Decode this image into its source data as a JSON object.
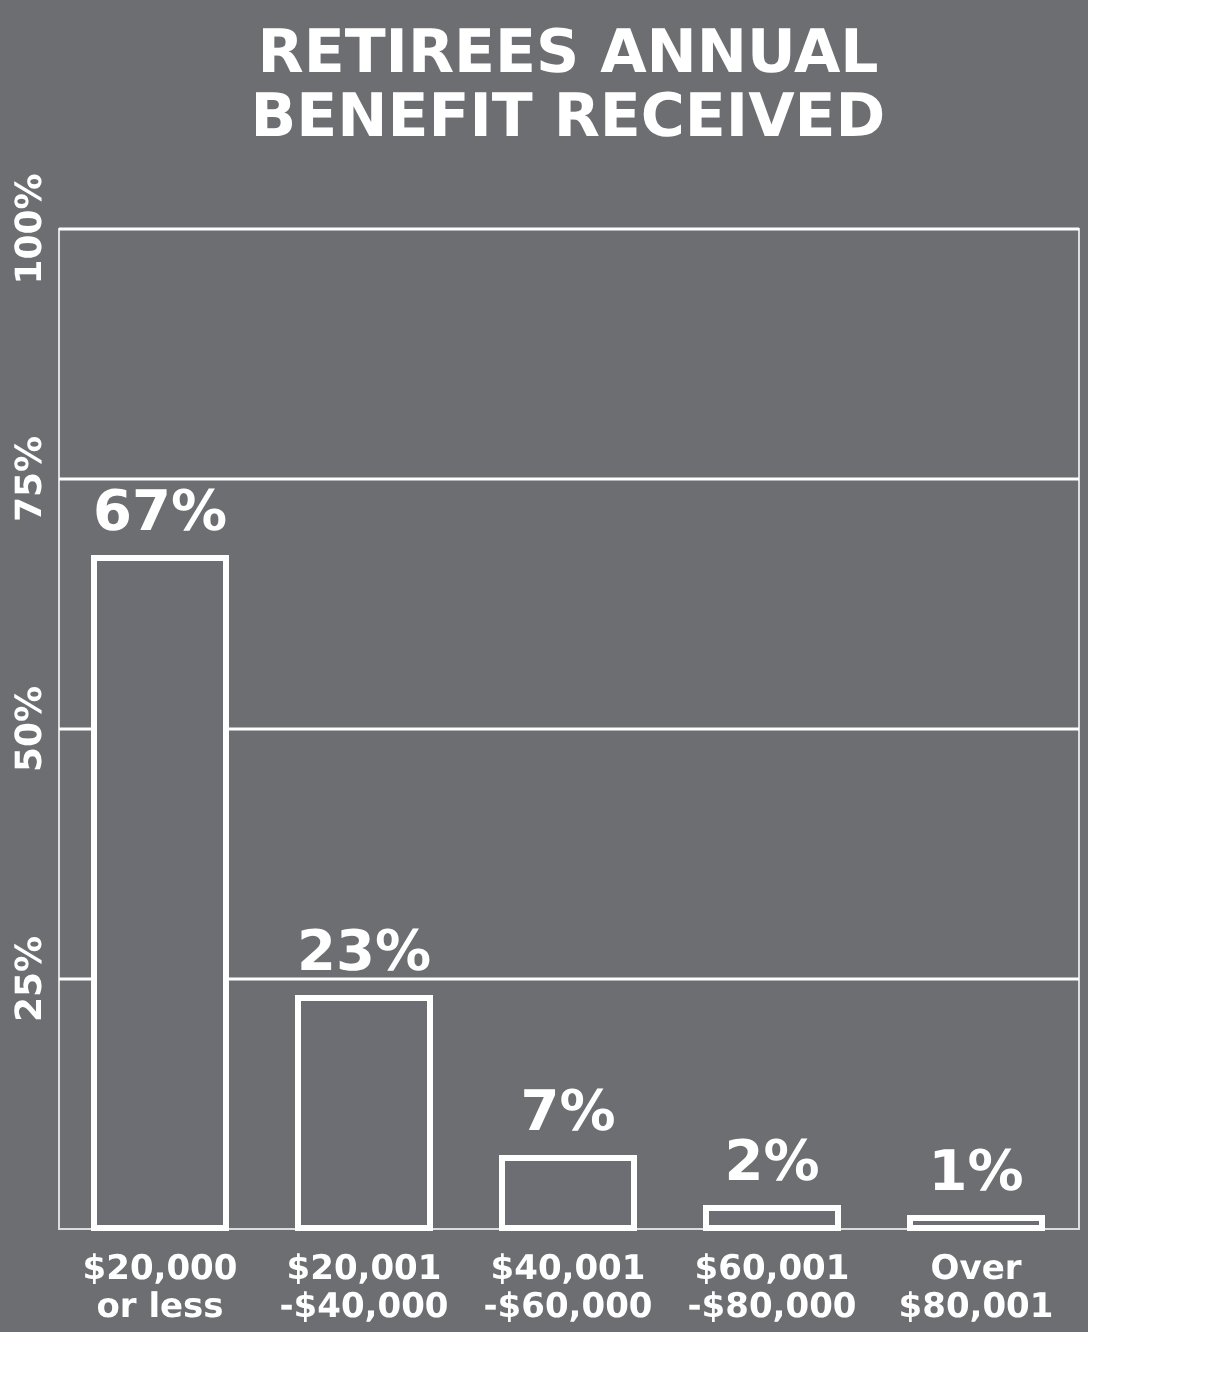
{
  "chart_data": {
    "type": "bar",
    "title": [
      "RETIREES ANNUAL",
      "BENEFIT RECEIVED"
    ],
    "categories": [
      "$20,000\nor less",
      "$20,001\n-$40,000",
      "$40,001\n-$60,000",
      "$60,001\n-$80,000",
      "Over\n$80,001"
    ],
    "values": [
      67,
      23,
      7,
      2,
      1
    ],
    "value_labels": [
      "67%",
      "23%",
      "7%",
      "2%",
      "1%"
    ],
    "color": "#6d6e73",
    "ylim": [
      0,
      100
    ],
    "yticks": [
      {
        "value": 25,
        "label": "25%"
      },
      {
        "value": 50,
        "label": "50%"
      },
      {
        "value": 75,
        "label": "75%"
      },
      {
        "value": 100,
        "label": "100%"
      }
    ],
    "grid": "y"
  }
}
